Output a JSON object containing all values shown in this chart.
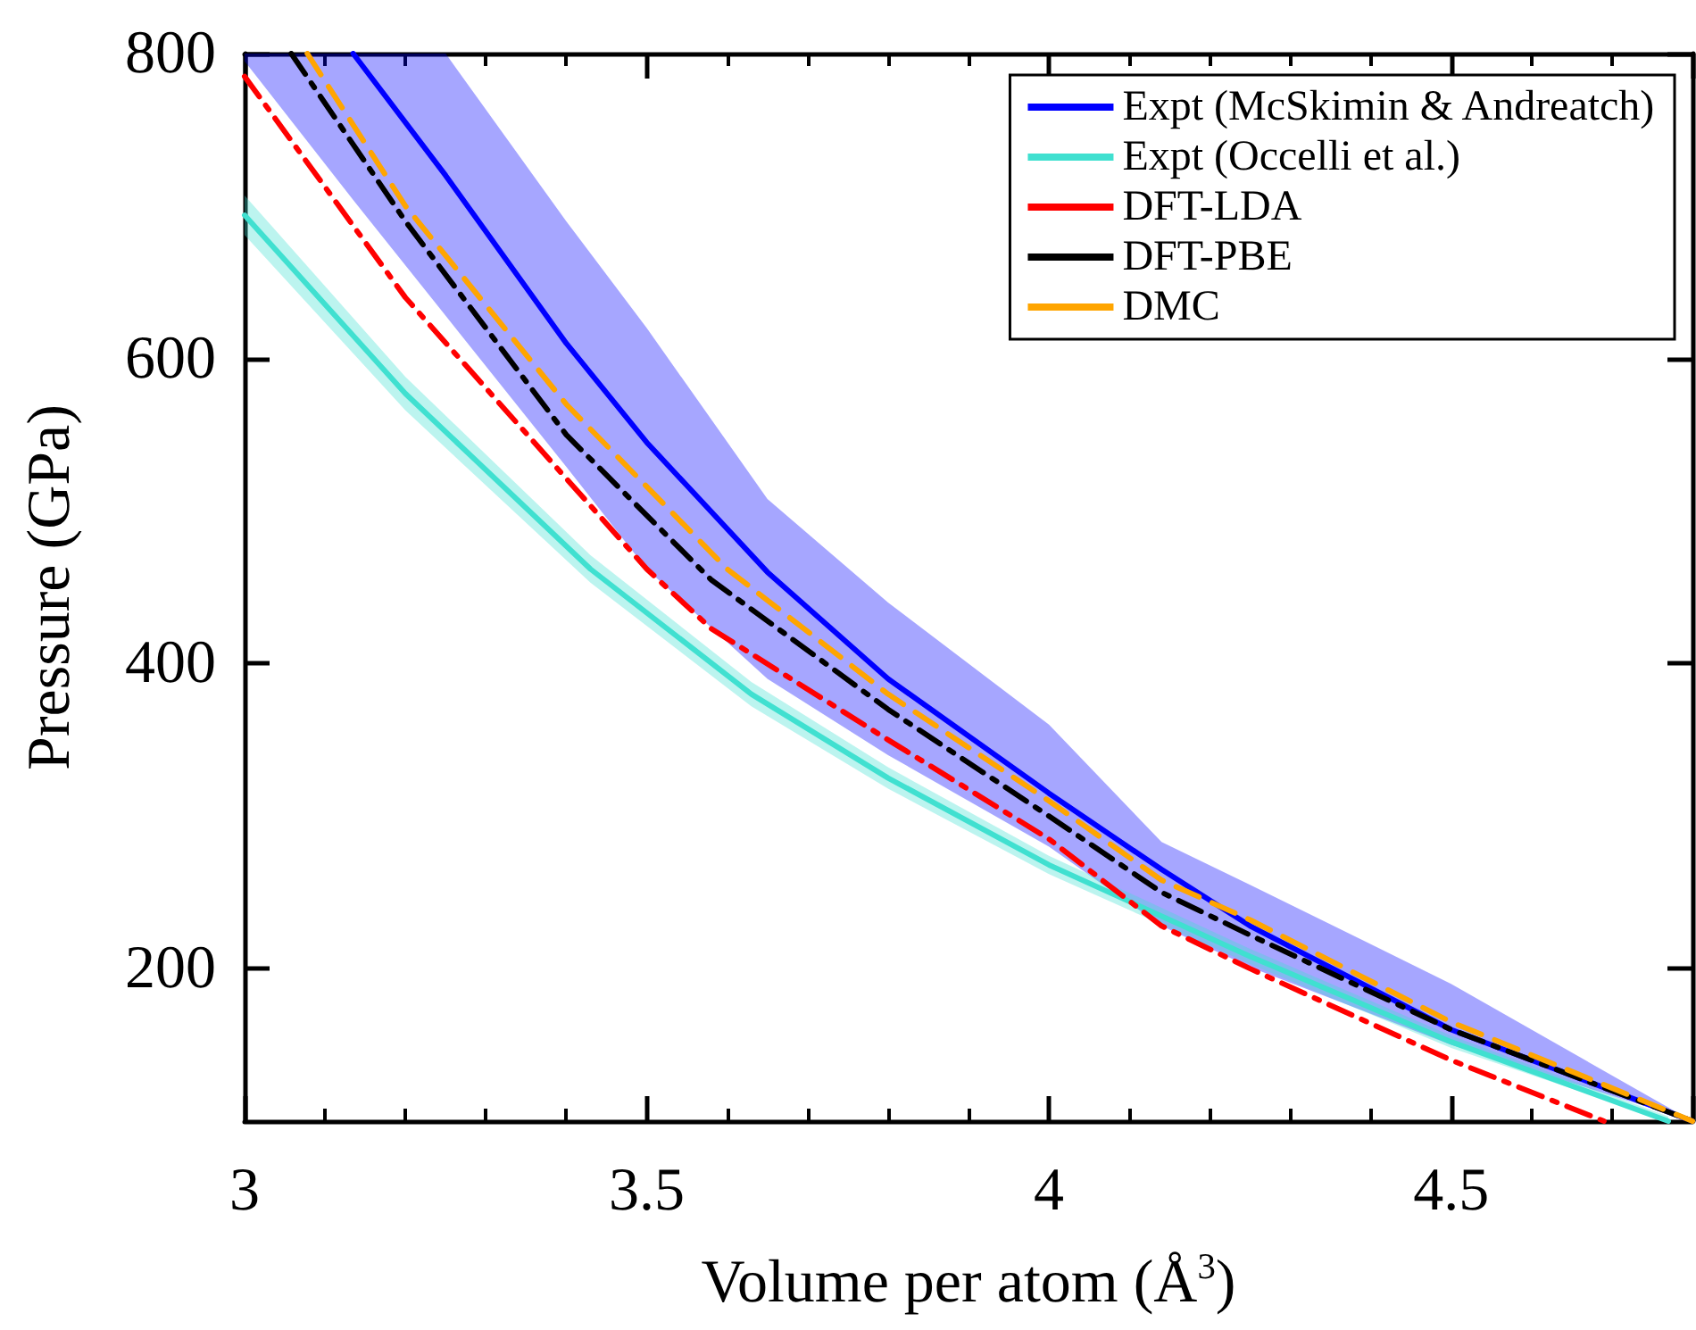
{
  "chart_data": {
    "type": "line",
    "xlabel": "Volume per atom (Å$^{3}$)",
    "ylabel": "Pressure (GPa)",
    "xlim": [
      3,
      4.8
    ],
    "xticks": [
      3,
      3.5,
      4,
      4.5
    ],
    "ylim": [
      100,
      800
    ],
    "yticks": [
      200,
      400,
      600,
      800
    ],
    "grid": false,
    "legend": "top right",
    "marker": "none",
    "series": [
      {
        "name": "Expt (McSkimin & Andreatch)",
        "color": "#0000ff",
        "line_style": "solid",
        "x": [
          3.0,
          3.135,
          3.25,
          3.4,
          3.5,
          3.65,
          3.8,
          4.0,
          4.14,
          4.25,
          4.5,
          4.8
        ],
        "values": [
          null,
          800,
          720,
          610,
          545,
          460,
          390,
          315,
          265,
          228,
          160,
          100
        ],
        "lower": [
          795,
          704,
          628,
          529,
          462,
          390,
          340,
          280,
          228,
          201,
          150,
          100
        ],
        "upper": [
          800,
          800,
          800,
          690,
          620,
          508,
          440,
          360,
          283,
          255,
          190,
          100
        ]
      },
      {
        "name": "Expt (Occelli et al.)",
        "color": "#40e0d0",
        "line_style": "solid",
        "x": [
          3.0,
          3.2,
          3.43,
          3.63,
          3.8,
          4.0,
          4.25,
          4.5,
          4.77
        ],
        "values": [
          694,
          577,
          462,
          380,
          325,
          268,
          208,
          152,
          100
        ],
        "lower": [
          681,
          566,
          453,
          372,
          318,
          262,
          203,
          148,
          100
        ],
        "upper": [
          707,
          588,
          471,
          388,
          332,
          274,
          213,
          156,
          103
        ]
      },
      {
        "name": "DFT-LDA",
        "color": "#ff0000",
        "line_style": "dashdot",
        "x": [
          3.0,
          3.2,
          3.5,
          3.58,
          3.8,
          4.0,
          4.14,
          4.25,
          4.5,
          4.69
        ],
        "values": [
          785,
          640,
          462,
          423,
          350,
          285,
          228,
          200,
          140,
          100
        ]
      },
      {
        "name": "DFT-PBE",
        "color": "#000000",
        "line_style": "dashdot",
        "x": [
          3.058,
          3.2,
          3.4,
          3.58,
          3.8,
          4.0,
          4.14,
          4.25,
          4.5,
          4.8
        ],
        "values": [
          800,
          690,
          550,
          455,
          370,
          300,
          250,
          222,
          160,
          100
        ]
      },
      {
        "name": "DMC",
        "color": "#ffa500",
        "line_style": "dashed",
        "x": [
          3.078,
          3.2,
          3.4,
          3.6,
          3.8,
          4.0,
          4.14,
          4.25,
          4.5,
          4.8
        ],
        "values": [
          800,
          700,
          570,
          462,
          380,
          310,
          258,
          232,
          165,
          100
        ]
      }
    ]
  }
}
